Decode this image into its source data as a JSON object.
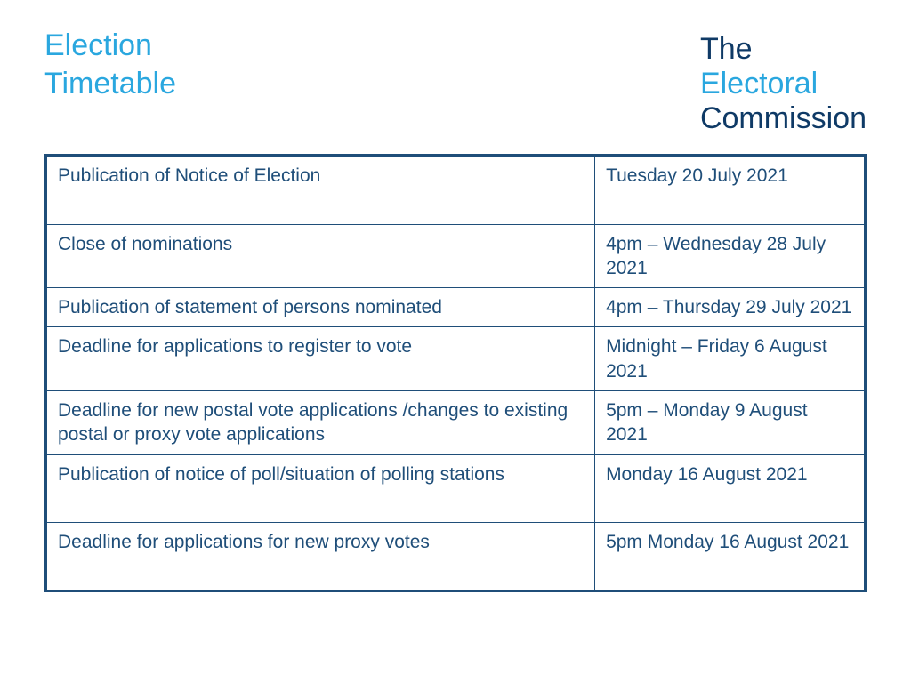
{
  "colors": {
    "title": "#2aa7df",
    "logo_dark": "#0f3a66",
    "logo_accent": "#2aa7df",
    "table_border": "#1f4e79",
    "text": "#1f4e79",
    "background": "#ffffff"
  },
  "title_line1": "Election",
  "title_line2": "Timetable",
  "logo": {
    "line1": "The",
    "line2": "Electoral",
    "line3": "Commission"
  },
  "table": {
    "border_width_outer": 3,
    "border_width_inner": 1,
    "rows": [
      {
        "event": "Publication of Notice of Election",
        "date": "Tuesday 20 July 2021",
        "tall": true
      },
      {
        "event": "Close of nominations",
        "date": "4pm – Wednesday 28 July 2021",
        "tall": false
      },
      {
        "event": "Publication of statement of persons nominated",
        "date": "4pm – Thursday 29 July 2021",
        "tall": false
      },
      {
        "event": "Deadline for applications to register to vote",
        "date": "Midnight – Friday 6 August 2021",
        "tall": false
      },
      {
        "event": "Deadline for new postal vote applications /changes to existing postal or proxy vote applications",
        "date": "5pm – Monday 9 August 2021",
        "tall": false
      },
      {
        "event": "Publication of notice of poll/situation of polling stations",
        "date": "Monday 16 August 2021",
        "tall": true
      },
      {
        "event": "Deadline for applications for new proxy votes",
        "date": "5pm Monday 16 August 2021",
        "tall": true
      }
    ]
  }
}
